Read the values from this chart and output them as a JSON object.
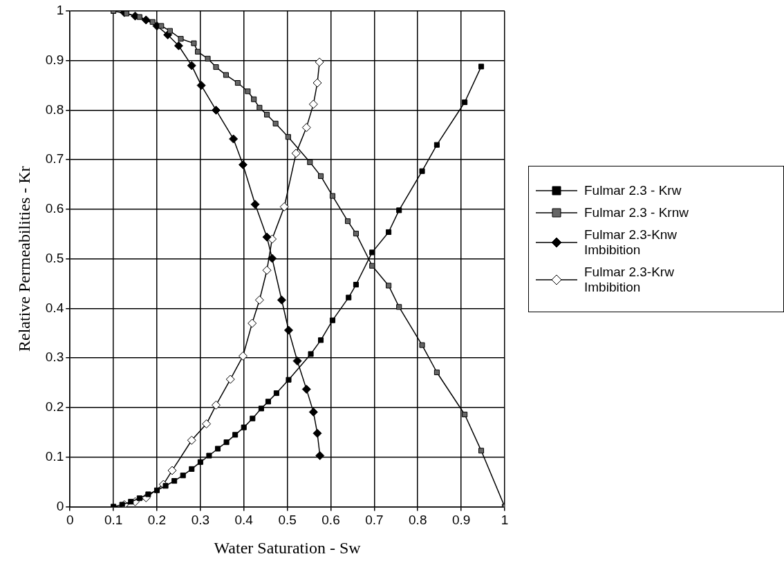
{
  "chart_data": {
    "type": "line",
    "xlabel": "Water Saturation - Sw",
    "ylabel": "Relative Permeabilities - Kr",
    "xlim": [
      0,
      1
    ],
    "ylim": [
      0,
      1
    ],
    "xticks": [
      0,
      0.1,
      0.2,
      0.3,
      0.4,
      0.5,
      0.6,
      0.7,
      0.8,
      0.9,
      1
    ],
    "yticks": [
      0,
      0.1,
      0.2,
      0.3,
      0.4,
      0.5,
      0.6,
      0.7,
      0.8,
      0.9,
      1
    ],
    "grid": true,
    "legend": "right",
    "line_style": "solid",
    "series": [
      {
        "name": "Fulmar 2.3 - Krw",
        "color": "#000000",
        "marker": "square",
        "x": [
          0.1,
          0.12,
          0.14,
          0.16,
          0.18,
          0.2,
          0.22,
          0.24,
          0.26,
          0.28,
          0.3,
          0.32,
          0.34,
          0.36,
          0.38,
          0.4,
          0.42,
          0.44,
          0.456,
          0.475,
          0.503,
          0.554,
          0.577,
          0.604,
          0.641,
          0.658,
          0.695,
          0.733,
          0.757,
          0.81,
          0.844,
          0.908,
          0.946
        ],
        "values": [
          0,
          0.004,
          0.01,
          0.017,
          0.025,
          0.033,
          0.042,
          0.052,
          0.063,
          0.076,
          0.09,
          0.103,
          0.117,
          0.13,
          0.145,
          0.16,
          0.178,
          0.198,
          0.212,
          0.229,
          0.256,
          0.308,
          0.336,
          0.376,
          0.422,
          0.448,
          0.513,
          0.554,
          0.598,
          0.677,
          0.73,
          0.816,
          0.888
        ]
      },
      {
        "name": "Fulmar 2.3 - Krnw",
        "color": "#666666",
        "marker": "square",
        "x": [
          0.1,
          0.13,
          0.16,
          0.19,
          0.21,
          0.23,
          0.255,
          0.285,
          0.294,
          0.317,
          0.336,
          0.359,
          0.386,
          0.409,
          0.423,
          0.436,
          0.453,
          0.473,
          0.502,
          0.552,
          0.577,
          0.604,
          0.639,
          0.658,
          0.695,
          0.733,
          0.757,
          0.81,
          0.844,
          0.908,
          0.946,
          1
        ],
        "values": [
          1,
          0.995,
          0.988,
          0.978,
          0.97,
          0.96,
          0.944,
          0.935,
          0.918,
          0.904,
          0.887,
          0.871,
          0.855,
          0.838,
          0.822,
          0.805,
          0.791,
          0.773,
          0.746,
          0.695,
          0.667,
          0.627,
          0.576,
          0.551,
          0.486,
          0.446,
          0.403,
          0.326,
          0.271,
          0.186,
          0.113,
          0
        ]
      },
      {
        "name": "Fulmar 2.3-Knw Imbibition",
        "color": "#000000",
        "marker": "diamond",
        "x": [
          0.125,
          0.15,
          0.175,
          0.2,
          0.225,
          0.25,
          0.28,
          0.302,
          0.336,
          0.376,
          0.398,
          0.426,
          0.453,
          0.465,
          0.487,
          0.503,
          0.523,
          0.544,
          0.56,
          0.569,
          0.575
        ],
        "values": [
          0.997,
          0.99,
          0.982,
          0.97,
          0.952,
          0.93,
          0.89,
          0.85,
          0.8,
          0.742,
          0.69,
          0.61,
          0.544,
          0.501,
          0.417,
          0.356,
          0.294,
          0.237,
          0.191,
          0.148,
          0.103
        ]
      },
      {
        "name": "Fulmar 2.3-Krw Imbibition",
        "color": "#ffffff",
        "marker": "diamond",
        "x": [
          0.125,
          0.15,
          0.175,
          0.215,
          0.235,
          0.28,
          0.314,
          0.336,
          0.369,
          0.398,
          0.419,
          0.436,
          0.453,
          0.465,
          0.493,
          0.52,
          0.544,
          0.56,
          0.569,
          0.574
        ],
        "values": [
          0.004,
          0.01,
          0.018,
          0.045,
          0.073,
          0.134,
          0.167,
          0.205,
          0.257,
          0.304,
          0.37,
          0.417,
          0.477,
          0.54,
          0.605,
          0.713,
          0.765,
          0.812,
          0.855,
          0.897
        ]
      }
    ]
  }
}
